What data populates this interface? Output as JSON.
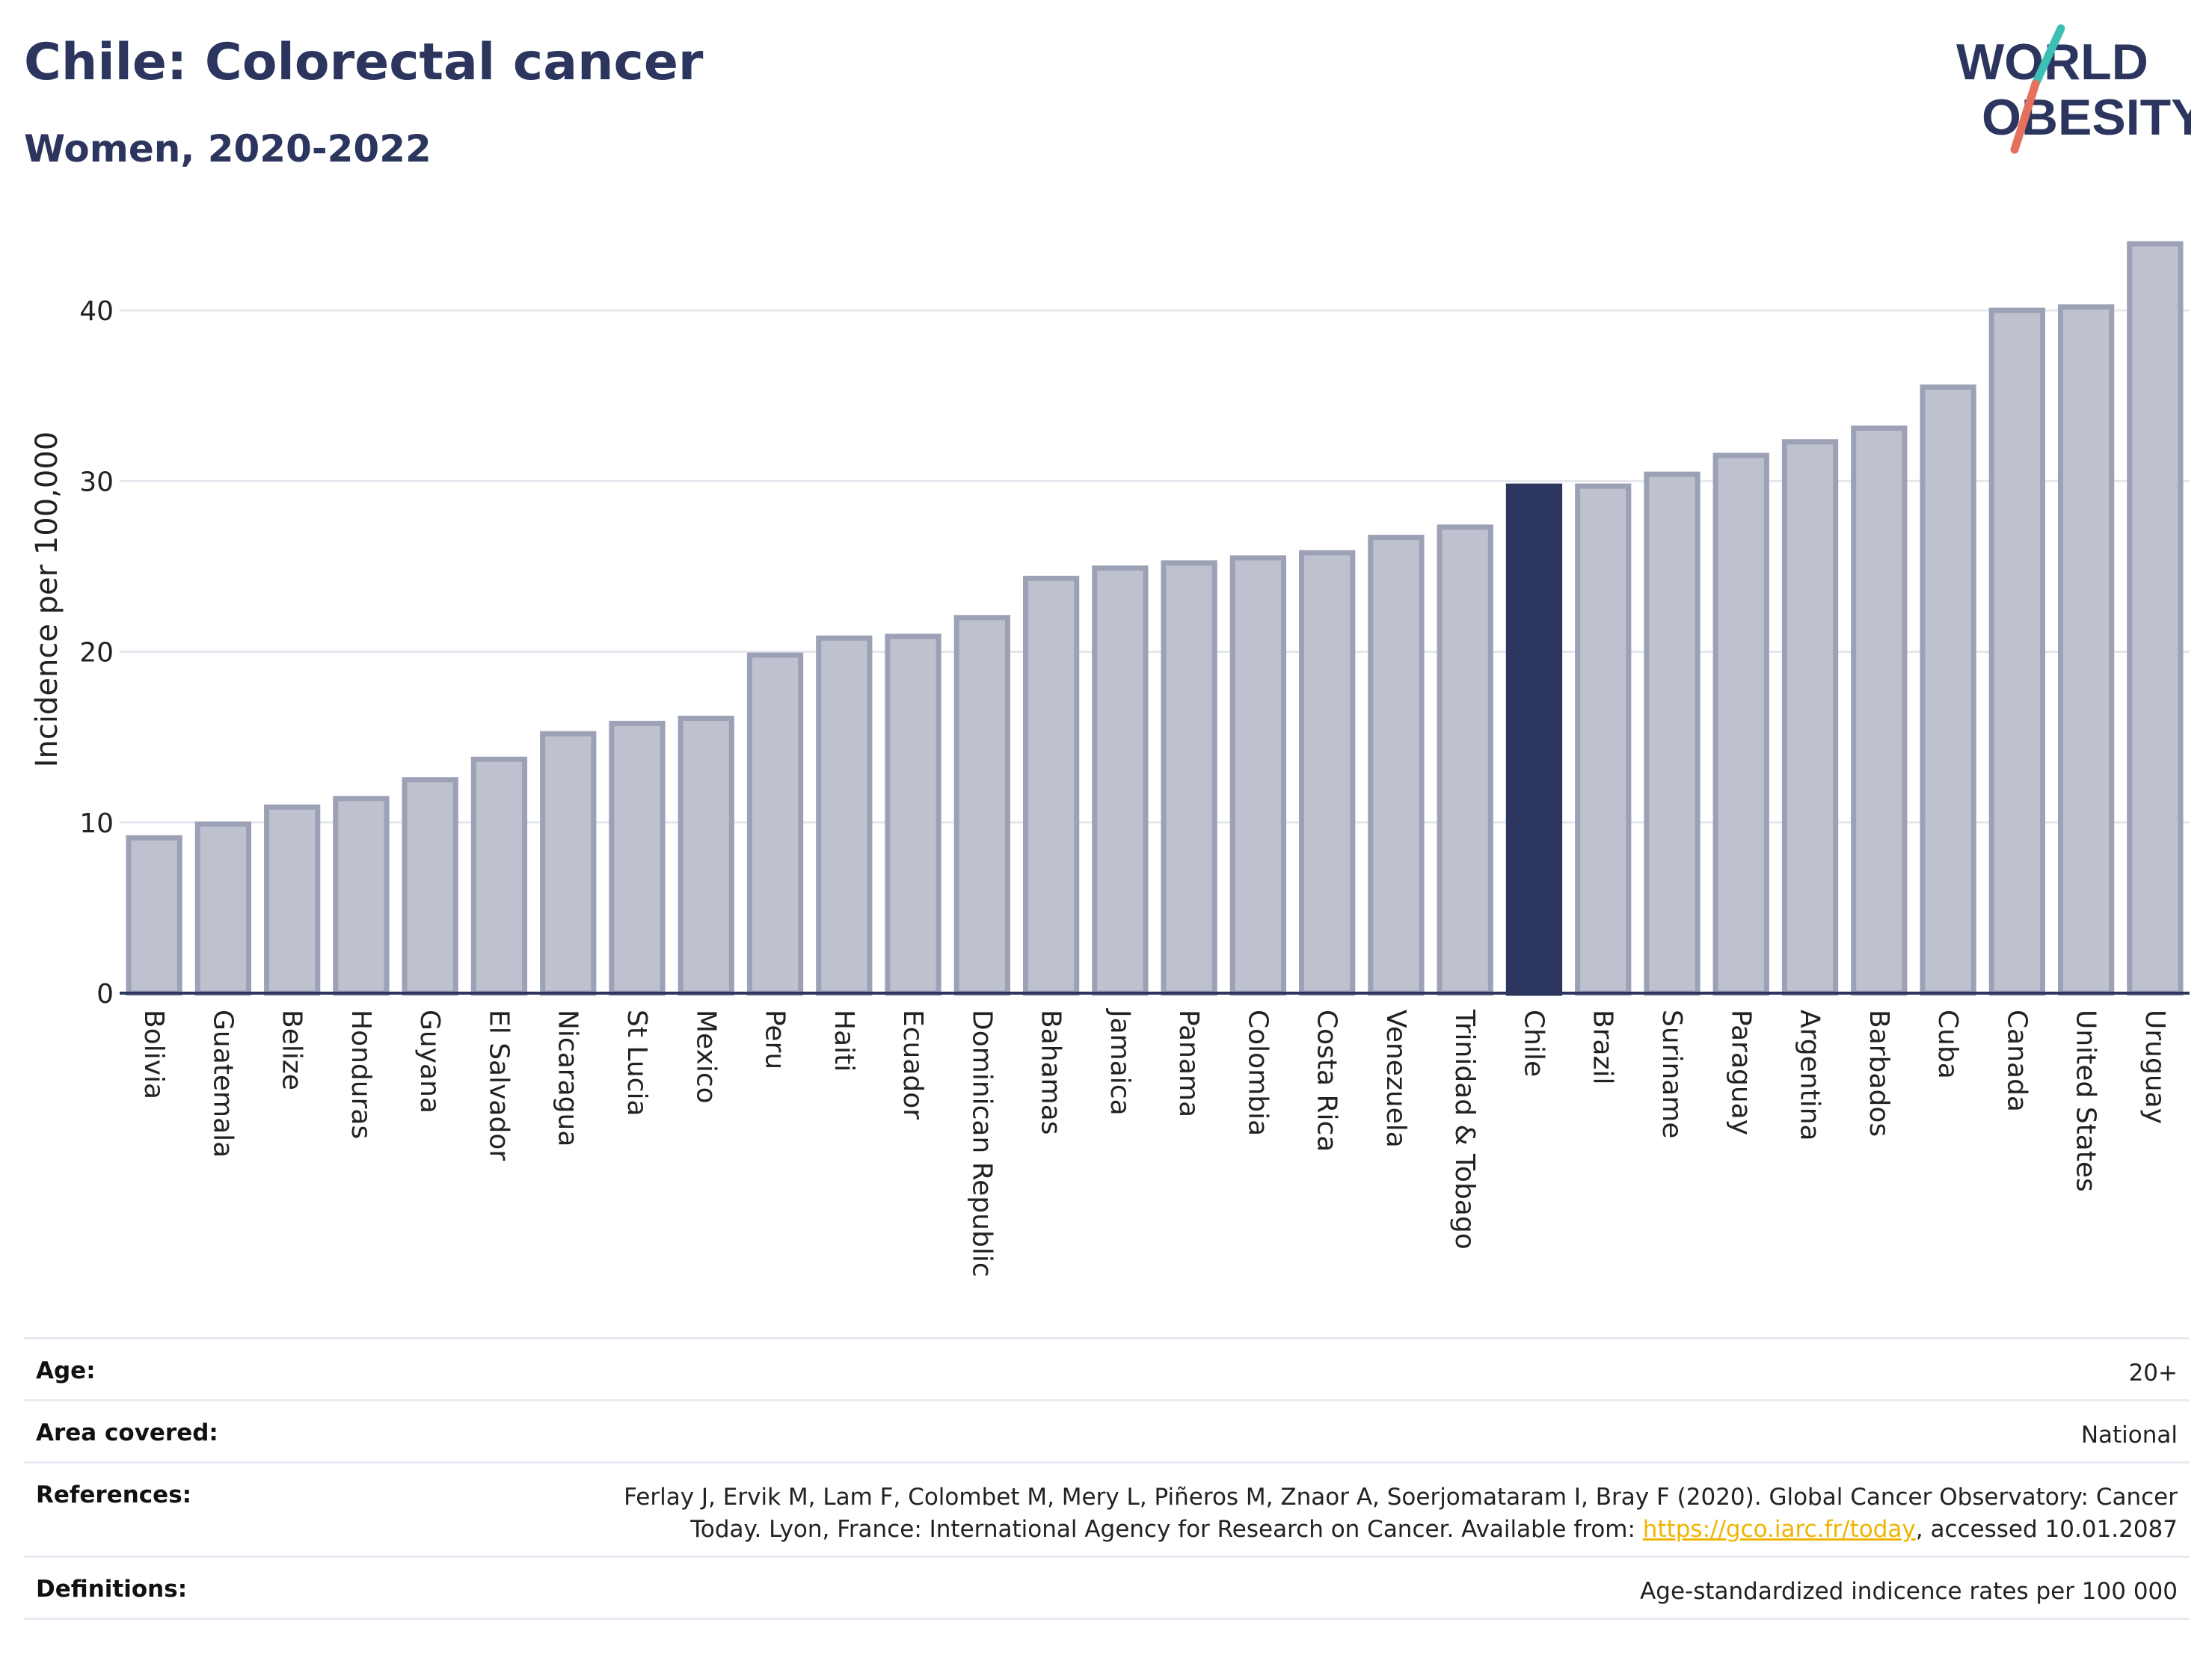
{
  "header": {
    "title": "Chile: Colorectal cancer",
    "subtitle": "Women, 2020-2022"
  },
  "logo": {
    "line1": "WORLD",
    "line2": "OBESITY"
  },
  "colors": {
    "bar": "#bec1ce",
    "bar_border": "#9ca1b6",
    "highlight": "#2b355e",
    "text": "#2b355e",
    "link": "#f0b400",
    "logo_slash_teal": "#3cc0b4",
    "logo_slash_red": "#e5705e"
  },
  "chart_data": {
    "type": "bar",
    "title": "Chile: Colorectal cancer",
    "subtitle": "Women, 2020-2022",
    "xlabel": "",
    "ylabel": "Incidence per 100,000",
    "ylim": [
      0,
      44
    ],
    "yticks": [
      0,
      10,
      20,
      30,
      40
    ],
    "grid": true,
    "highlight": "Chile",
    "categories": [
      "Bolivia",
      "Guatemala",
      "Belize",
      "Honduras",
      "Guyana",
      "El Salvador",
      "Nicaragua",
      "St Lucia",
      "Mexico",
      "Peru",
      "Haiti",
      "Ecuador",
      "Dominican Republic",
      "Bahamas",
      "Jamaica",
      "Panama",
      "Colombia",
      "Costa Rica",
      "Venezuela",
      "Trinidad & Tobago",
      "Chile",
      "Brazil",
      "Suriname",
      "Paraguay",
      "Argentina",
      "Barbados",
      "Cuba",
      "Canada",
      "United States",
      "Uruguay"
    ],
    "values": [
      9.1,
      9.9,
      10.9,
      11.4,
      12.5,
      13.7,
      15.2,
      15.8,
      16.1,
      19.8,
      20.8,
      20.9,
      22.0,
      24.3,
      24.9,
      25.2,
      25.5,
      25.8,
      26.7,
      27.3,
      29.7,
      29.7,
      30.4,
      31.5,
      32.3,
      33.1,
      35.5,
      40.0,
      40.2,
      43.9
    ]
  },
  "info": {
    "age_label": "Age:",
    "age_value": "20+",
    "area_label": "Area covered:",
    "area_value": "National",
    "references_label": "References:",
    "references_line1": "Ferlay J, Ervik M, Lam F, Colombet M, Mery L, Piñeros M, Znaor A, Soerjomataram I, Bray F (2020). Global Cancer Observatory: Cancer",
    "references_line2_pre": "Today. Lyon, France: International Agency for Research on Cancer. Available from: ",
    "references_link": "https://gco.iarc.fr/today",
    "references_line2_post": ", accessed 10.01.2087",
    "definitions_label": "Definitions:",
    "definitions_value": "Age-standardized indicence rates per 100 000"
  }
}
